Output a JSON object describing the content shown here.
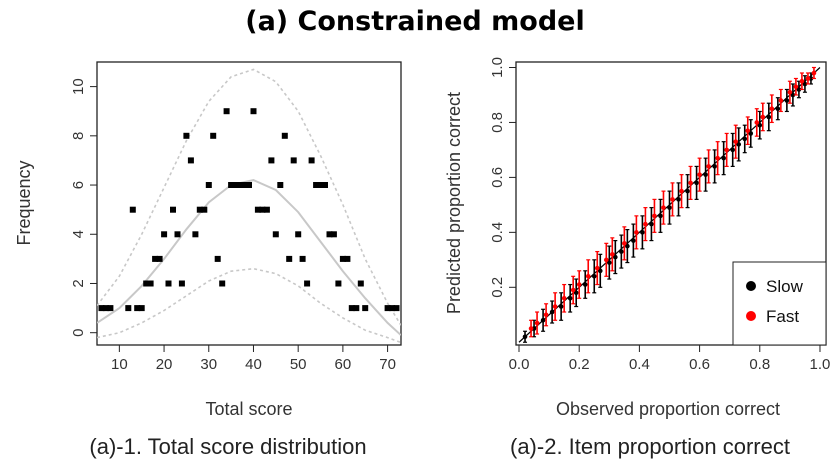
{
  "title": "(a) Constrained model",
  "chart_data": [
    {
      "type": "scatter",
      "caption": "(a)-1. Total score distribution",
      "xlabel": "Total score",
      "ylabel": "Frequency",
      "xlim": [
        5,
        73
      ],
      "ylim": [
        -0.5,
        11
      ],
      "xticks": [
        10,
        20,
        30,
        40,
        50,
        60,
        70
      ],
      "yticks": [
        0,
        2,
        4,
        6,
        8,
        10
      ],
      "series": [
        {
          "kind": "points",
          "x": [
            6,
            7,
            8,
            12,
            13,
            14,
            15,
            16,
            17,
            18,
            19,
            20,
            21,
            22,
            23,
            24,
            25,
            26,
            27,
            28,
            29,
            30,
            31,
            32,
            33,
            34,
            35,
            36,
            37,
            38,
            39,
            40,
            41,
            42,
            43,
            44,
            45,
            46,
            47,
            48,
            49,
            50,
            51,
            52,
            53,
            54,
            55,
            56,
            57,
            58,
            59,
            60,
            61,
            62,
            63,
            64,
            65,
            70,
            71,
            72
          ],
          "y": [
            1,
            1,
            1,
            1,
            5,
            1,
            1,
            2,
            2,
            3,
            3,
            4,
            2,
            5,
            4,
            2,
            8,
            7,
            4,
            5,
            5,
            6,
            8,
            3,
            2,
            9,
            6,
            6,
            6,
            6,
            6,
            9,
            5,
            5,
            5,
            7,
            4,
            6,
            8,
            3,
            7,
            4,
            3,
            2,
            7,
            6,
            6,
            6,
            4,
            4,
            2,
            3,
            3,
            1,
            1,
            2,
            1,
            1,
            1,
            1
          ]
        },
        {
          "kind": "curve",
          "x": [
            5,
            10,
            15,
            20,
            25,
            30,
            35,
            40,
            45,
            50,
            55,
            60,
            65,
            70,
            73
          ],
          "y": [
            0.4,
            1.0,
            1.9,
            3.0,
            4.2,
            5.3,
            6.0,
            6.2,
            5.8,
            4.9,
            3.7,
            2.5,
            1.4,
            0.4,
            -0.1
          ]
        },
        {
          "kind": "band-upper",
          "x": [
            5,
            10,
            15,
            20,
            25,
            30,
            35,
            40,
            45,
            50,
            55,
            60,
            65,
            70,
            73
          ],
          "y": [
            1.1,
            2.3,
            4.0,
            5.9,
            7.8,
            9.4,
            10.4,
            10.7,
            10.2,
            9.0,
            7.2,
            5.2,
            3.0,
            1.2,
            0.3
          ]
        },
        {
          "kind": "band-lower",
          "x": [
            5,
            10,
            15,
            20,
            25,
            30,
            35,
            40,
            45,
            50,
            55,
            60,
            65,
            70,
            73
          ],
          "y": [
            -0.2,
            0.0,
            0.4,
            0.9,
            1.5,
            2.1,
            2.5,
            2.6,
            2.4,
            1.9,
            1.2,
            0.6,
            0.1,
            -0.2,
            -0.4
          ]
        }
      ]
    },
    {
      "type": "scatter",
      "caption": "(a)-2. Item proportion correct",
      "xlabel": "Observed proportion correct",
      "ylabel": "Predicted proportion correct",
      "xlim": [
        -0.01,
        1.02
      ],
      "ylim": [
        -0.01,
        1.02
      ],
      "xticks": [
        0.0,
        0.2,
        0.4,
        0.6,
        0.8,
        1.0
      ],
      "yticks": [
        0.2,
        0.4,
        0.6,
        0.8,
        1.0
      ],
      "legend": {
        "placement": "bottom-right",
        "entries": [
          "Slow",
          "Fast"
        ]
      },
      "colors": {
        "Slow": "#000000",
        "Fast": "#ff0000"
      },
      "series": [
        {
          "name": "Slow",
          "x": [
            0.02,
            0.05,
            0.08,
            0.11,
            0.14,
            0.17,
            0.19,
            0.22,
            0.25,
            0.27,
            0.3,
            0.32,
            0.34,
            0.36,
            0.38,
            0.41,
            0.44,
            0.47,
            0.5,
            0.53,
            0.56,
            0.59,
            0.62,
            0.65,
            0.68,
            0.71,
            0.73,
            0.75,
            0.77,
            0.8,
            0.83,
            0.86,
            0.89,
            0.91,
            0.93,
            0.95,
            0.97
          ],
          "y": [
            0.02,
            0.05,
            0.08,
            0.11,
            0.13,
            0.16,
            0.18,
            0.21,
            0.24,
            0.26,
            0.29,
            0.31,
            0.33,
            0.35,
            0.37,
            0.4,
            0.43,
            0.46,
            0.49,
            0.52,
            0.55,
            0.58,
            0.61,
            0.64,
            0.67,
            0.7,
            0.72,
            0.74,
            0.76,
            0.79,
            0.82,
            0.85,
            0.88,
            0.9,
            0.92,
            0.94,
            0.96
          ],
          "err": [
            0.02,
            0.03,
            0.04,
            0.04,
            0.05,
            0.05,
            0.05,
            0.05,
            0.06,
            0.06,
            0.06,
            0.06,
            0.06,
            0.06,
            0.06,
            0.06,
            0.06,
            0.06,
            0.06,
            0.06,
            0.06,
            0.06,
            0.06,
            0.06,
            0.06,
            0.06,
            0.06,
            0.05,
            0.05,
            0.05,
            0.05,
            0.04,
            0.04,
            0.04,
            0.03,
            0.03,
            0.02
          ]
        },
        {
          "name": "Fast",
          "x": [
            0.04,
            0.06,
            0.09,
            0.12,
            0.15,
            0.18,
            0.2,
            0.23,
            0.26,
            0.29,
            0.31,
            0.35,
            0.39,
            0.42,
            0.45,
            0.48,
            0.51,
            0.54,
            0.57,
            0.6,
            0.63,
            0.66,
            0.69,
            0.72,
            0.76,
            0.79,
            0.81,
            0.84,
            0.87,
            0.9,
            0.92,
            0.94,
            0.96,
            0.98
          ],
          "y": [
            0.05,
            0.07,
            0.1,
            0.13,
            0.16,
            0.19,
            0.21,
            0.24,
            0.27,
            0.3,
            0.32,
            0.36,
            0.4,
            0.43,
            0.46,
            0.49,
            0.52,
            0.55,
            0.58,
            0.61,
            0.64,
            0.67,
            0.7,
            0.73,
            0.77,
            0.8,
            0.82,
            0.85,
            0.88,
            0.91,
            0.93,
            0.95,
            0.96,
            0.98
          ],
          "err": [
            0.03,
            0.04,
            0.04,
            0.05,
            0.05,
            0.05,
            0.05,
            0.06,
            0.06,
            0.06,
            0.06,
            0.06,
            0.06,
            0.06,
            0.06,
            0.06,
            0.06,
            0.06,
            0.06,
            0.06,
            0.06,
            0.06,
            0.06,
            0.06,
            0.05,
            0.05,
            0.05,
            0.05,
            0.04,
            0.04,
            0.03,
            0.03,
            0.02,
            0.02
          ]
        }
      ],
      "reference_line": {
        "from": [
          0,
          0
        ],
        "to": [
          1,
          1
        ]
      }
    }
  ]
}
